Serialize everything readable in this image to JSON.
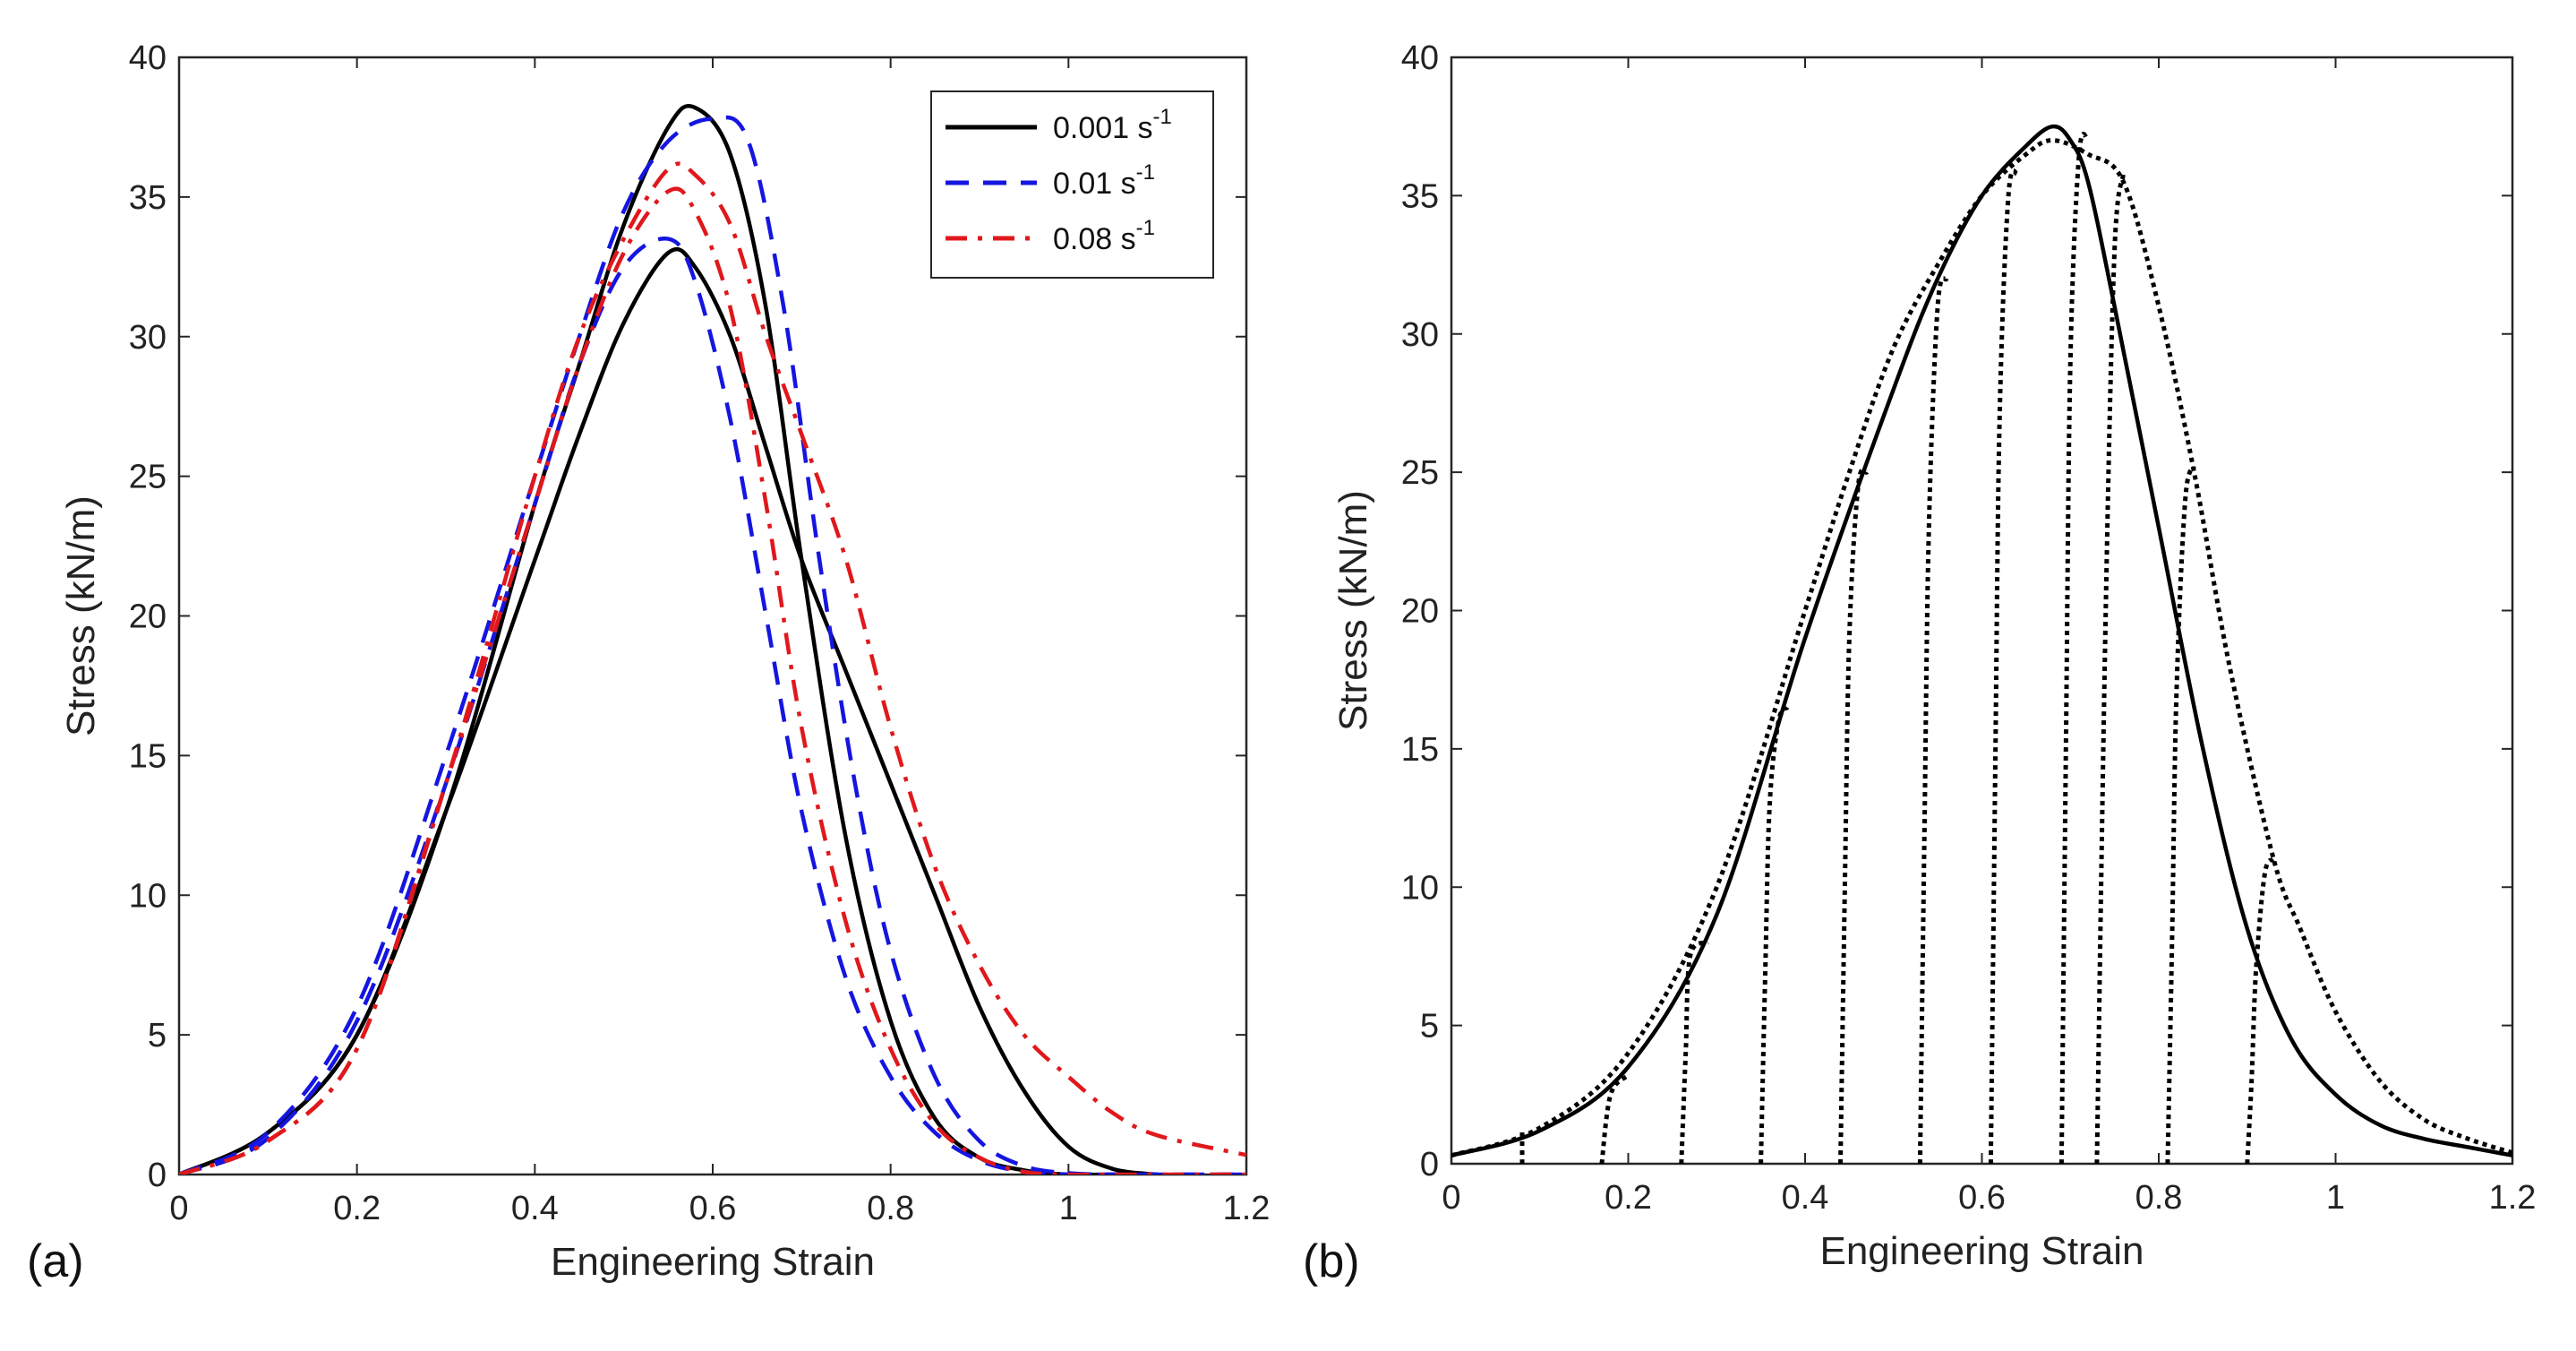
{
  "chart_data": [
    {
      "panel_label": "(a)",
      "type": "line",
      "xlabel": "Engineering Strain",
      "ylabel": "Stress (kN/m)",
      "xlim": [
        0,
        1.2
      ],
      "ylim": [
        0,
        40
      ],
      "xticks": [
        "0",
        "0.2",
        "0.4",
        "0.6",
        "0.8",
        "1",
        "1.2"
      ],
      "yticks": [
        "0",
        "5",
        "10",
        "15",
        "20",
        "25",
        "30",
        "35",
        "40"
      ],
      "legend": {
        "placement": "top-right",
        "entries": [
          {
            "base": "0.001 s",
            "sup": "-1",
            "color": "#000000",
            "dash": "solid"
          },
          {
            "base": "0.01 s",
            "sup": "-1",
            "color": "#1515e0",
            "dash": "dashed"
          },
          {
            "base": "0.08 s",
            "sup": "-1",
            "color": "#e0181c",
            "dash": "dashdot"
          }
        ]
      },
      "series": [
        {
          "color": "#000000",
          "dash": "solid",
          "x": [
            0,
            0.1,
            0.2,
            0.3,
            0.4,
            0.45,
            0.5,
            0.55,
            0.58,
            0.62,
            0.66,
            0.7,
            0.75,
            0.8,
            0.85,
            0.9,
            0.95,
            1.0,
            1.05,
            1.1
          ],
          "y": [
            0,
            1.5,
            5,
            13,
            24,
            29,
            34,
            37.5,
            38.2,
            36.5,
            31,
            22,
            12,
            5.5,
            2,
            0.6,
            0.15,
            0,
            0,
            0
          ]
        },
        {
          "color": "#000000",
          "dash": "solid",
          "x": [
            0,
            0.1,
            0.2,
            0.3,
            0.4,
            0.45,
            0.5,
            0.55,
            0.58,
            0.62,
            0.66,
            0.7,
            0.75,
            0.8,
            0.85,
            0.9,
            0.95,
            1.0,
            1.05,
            1.1
          ],
          "y": [
            0,
            1.5,
            5,
            13,
            22,
            26.5,
            30.5,
            33,
            32.5,
            30,
            26,
            22,
            18,
            14,
            10,
            6,
            3,
            1,
            0.2,
            0
          ]
        },
        {
          "color": "#1515e0",
          "dash": "dashed",
          "x": [
            0,
            0.1,
            0.2,
            0.3,
            0.4,
            0.45,
            0.5,
            0.55,
            0.6,
            0.64,
            0.68,
            0.72,
            0.76,
            0.8,
            0.85,
            0.9,
            0.95,
            1.0,
            1.05,
            1.1,
            1.2
          ],
          "y": [
            0,
            1.5,
            6,
            15,
            25,
            30,
            34.5,
            37,
            37.8,
            37,
            31,
            22,
            14,
            8,
            3.5,
            1.2,
            0.3,
            0.05,
            0,
            0,
            0
          ]
        },
        {
          "color": "#1515e0",
          "dash": "dashed",
          "x": [
            0,
            0.1,
            0.2,
            0.3,
            0.4,
            0.45,
            0.5,
            0.55,
            0.58,
            0.62,
            0.66,
            0.7,
            0.75,
            0.8,
            0.85,
            0.9,
            0.95,
            1.0,
            1.05,
            1.1,
            1.2
          ],
          "y": [
            0,
            1.3,
            5.5,
            14,
            24,
            29,
            32.5,
            33.5,
            32,
            27,
            20,
            13,
            7,
            3.5,
            1.5,
            0.5,
            0.1,
            0,
            0,
            0,
            0
          ]
        },
        {
          "color": "#e0181c",
          "dash": "dashdot",
          "x": [
            0,
            0.1,
            0.2,
            0.3,
            0.4,
            0.45,
            0.5,
            0.55,
            0.58,
            0.62,
            0.66,
            0.7,
            0.75,
            0.8,
            0.85,
            0.9,
            0.95,
            1.0,
            1.05,
            1.1,
            1.2
          ],
          "y": [
            0,
            1.2,
            4.5,
            14,
            25,
            30,
            33.5,
            36,
            35.8,
            34,
            30,
            26.5,
            22,
            16,
            11,
            7.5,
            5,
            3.5,
            2.2,
            1.4,
            0.7
          ]
        },
        {
          "color": "#e0181c",
          "dash": "dashdot",
          "x": [
            0,
            0.1,
            0.2,
            0.3,
            0.4,
            0.45,
            0.5,
            0.55,
            0.58,
            0.62,
            0.66,
            0.7,
            0.75,
            0.8,
            0.85,
            0.9,
            0.95,
            1.0,
            1.05,
            1.1,
            1.2
          ],
          "y": [
            0,
            1.2,
            4.5,
            14,
            24,
            29,
            33,
            35.2,
            34.5,
            31,
            24,
            16,
            9,
            4.5,
            1.8,
            0.6,
            0.1,
            0,
            0,
            0,
            0
          ]
        }
      ]
    },
    {
      "panel_label": "(b)",
      "type": "line",
      "xlabel": "Engineering Strain",
      "ylabel": "Stress (kN/m)",
      "xlim": [
        0,
        1.2
      ],
      "ylim": [
        0,
        40
      ],
      "xticks": [
        "0",
        "0.2",
        "0.4",
        "0.6",
        "0.8",
        "1",
        "1.2"
      ],
      "yticks": [
        "0",
        "5",
        "10",
        "15",
        "20",
        "25",
        "30",
        "35",
        "40"
      ],
      "series": [
        {
          "color": "#000000",
          "dash": "solid",
          "x": [
            0,
            0.1,
            0.2,
            0.3,
            0.4,
            0.5,
            0.55,
            0.6,
            0.65,
            0.68,
            0.7,
            0.72,
            0.75,
            0.8,
            0.85,
            0.9,
            0.95,
            1.0,
            1.05,
            1.1,
            1.15,
            1.2
          ],
          "y": [
            0.3,
            1.2,
            3.5,
            9,
            19,
            28,
            32,
            35,
            36.8,
            37.5,
            37,
            35.5,
            31,
            23,
            15,
            8.5,
            4.5,
            2.5,
            1.4,
            0.9,
            0.6,
            0.3
          ]
        },
        {
          "color": "#000000",
          "dash": "dotted",
          "x": [
            0,
            0.1,
            0.2,
            0.3,
            0.4,
            0.45,
            0.5,
            0.55,
            0.6,
            0.65,
            0.68,
            0.72,
            0.76,
            0.8,
            0.84,
            0.88,
            0.93,
            0.96,
            1.0,
            1.05,
            1.1,
            1.15,
            1.2
          ],
          "y": [
            0.3,
            1.3,
            4,
            10,
            20,
            25,
            29.5,
            32.5,
            35,
            36.5,
            37,
            36.5,
            35.5,
            31,
            25,
            18,
            11,
            8.5,
            5.5,
            3,
            1.6,
            0.9,
            0.4
          ]
        },
        {
          "color": "#000000",
          "dash": "dotted",
          "x": [
            0.08,
            0.08
          ],
          "y": [
            0,
            1.2
          ]
        },
        {
          "color": "#000000",
          "dash": "dotted",
          "x": [
            0.17,
            0.18,
            0.2
          ],
          "y": [
            0,
            2.5,
            3.2
          ]
        },
        {
          "color": "#000000",
          "dash": "dotted",
          "x": [
            0.26,
            0.265,
            0.27,
            0.29
          ],
          "y": [
            0,
            4,
            7.5,
            8
          ]
        },
        {
          "color": "#000000",
          "dash": "dotted",
          "x": [
            0.35,
            0.355,
            0.36,
            0.37,
            0.38
          ],
          "y": [
            0,
            7,
            13,
            16,
            16.5
          ]
        },
        {
          "color": "#000000",
          "dash": "dotted",
          "x": [
            0.44,
            0.445,
            0.45,
            0.46,
            0.47
          ],
          "y": [
            0,
            10,
            19,
            24.5,
            25
          ]
        },
        {
          "color": "#000000",
          "dash": "dotted",
          "x": [
            0.53,
            0.535,
            0.54,
            0.55,
            0.56
          ],
          "y": [
            0,
            12,
            23,
            31,
            32
          ]
        },
        {
          "color": "#000000",
          "dash": "dotted",
          "x": [
            0.61,
            0.615,
            0.62,
            0.63,
            0.64
          ],
          "y": [
            0,
            14,
            27,
            35,
            35.8
          ]
        },
        {
          "color": "#000000",
          "dash": "dotted",
          "x": [
            0.69,
            0.695,
            0.7,
            0.71,
            0.72
          ],
          "y": [
            0,
            15,
            29,
            36.5,
            37
          ]
        },
        {
          "color": "#000000",
          "dash": "dotted",
          "x": [
            0.73,
            0.74,
            0.75,
            0.76
          ],
          "y": [
            0,
            20,
            33,
            35.8
          ]
        },
        {
          "color": "#000000",
          "dash": "dotted",
          "x": [
            0.81,
            0.815,
            0.82,
            0.83,
            0.84
          ],
          "y": [
            0,
            8,
            17,
            24,
            25.2
          ]
        },
        {
          "color": "#000000",
          "dash": "dotted",
          "x": [
            0.9,
            0.905,
            0.91,
            0.92,
            0.93
          ],
          "y": [
            0,
            3,
            7,
            10.5,
            11
          ]
        }
      ]
    }
  ]
}
